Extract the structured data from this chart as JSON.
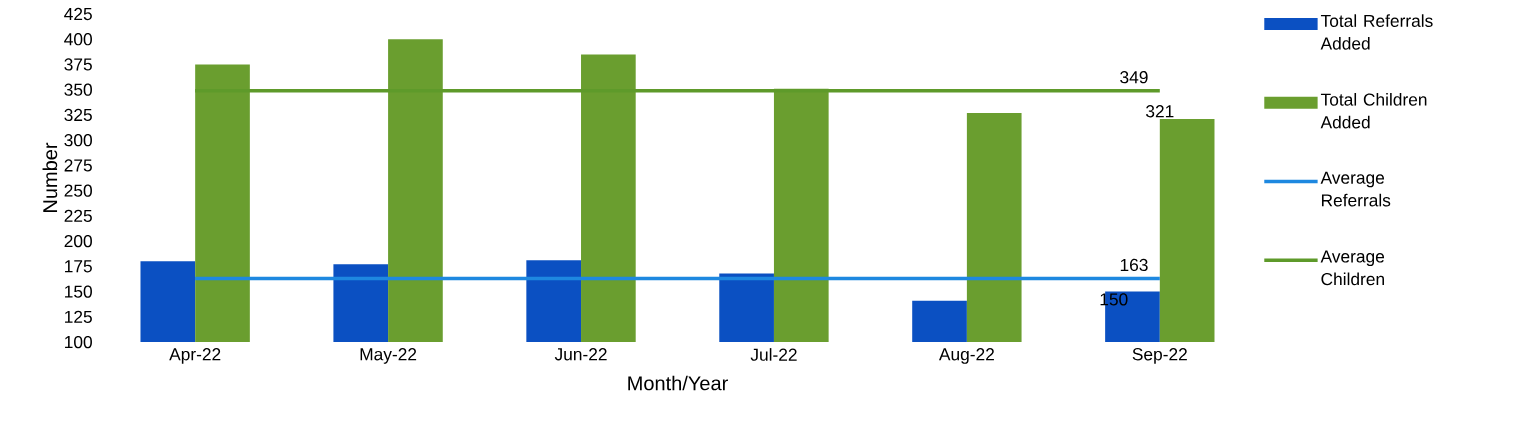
{
  "chart_data": {
    "type": "bar",
    "xlabel": "Month/Year",
    "ylabel": "Number",
    "categories": [
      "Apr-22",
      "May-22",
      "Jun-22",
      "Jul-22",
      "Aug-22",
      "Sep-22"
    ],
    "series": [
      {
        "name": "Total Referrals Added",
        "color": "#0b50c2",
        "values": [
          180,
          177,
          181,
          168,
          141,
          150
        ],
        "value_labels": [
          null,
          null,
          null,
          null,
          null,
          "150"
        ]
      },
      {
        "name": "Total Children Added",
        "color": "#6a9e2f",
        "values": [
          375,
          400,
          385,
          351,
          327,
          321
        ],
        "value_labels": [
          null,
          null,
          null,
          null,
          null,
          "321"
        ]
      },
      {
        "name": "Average Referrals",
        "type": "line",
        "color": "#1e88e0",
        "values": [
          163,
          163,
          163,
          163,
          163,
          163
        ],
        "value_labels": [
          null,
          null,
          null,
          null,
          null,
          "163"
        ]
      },
      {
        "name": "Average Children",
        "type": "line",
        "color": "#5e9a2a",
        "values": [
          349,
          349,
          349,
          349,
          349,
          349
        ],
        "value_labels": [
          null,
          null,
          null,
          null,
          null,
          "349"
        ]
      }
    ],
    "ylim": [
      100,
      425
    ],
    "yticks": [
      100,
      125,
      150,
      175,
      200,
      225,
      250,
      275,
      300,
      325,
      350,
      375,
      400,
      425
    ],
    "grid": false,
    "legend": "right"
  }
}
